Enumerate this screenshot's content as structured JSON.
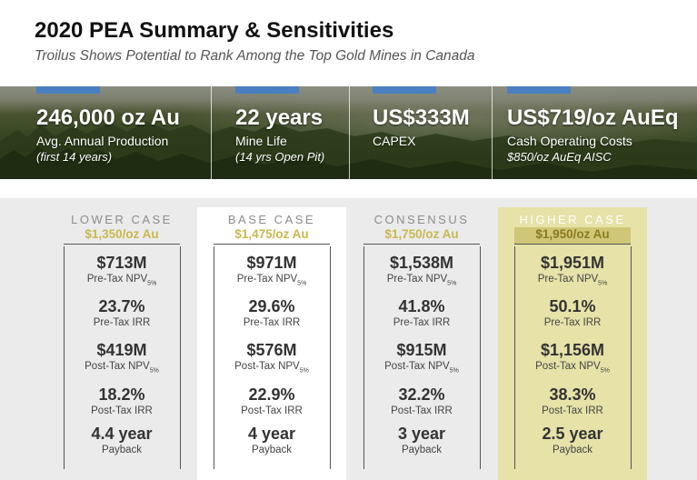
{
  "header": {
    "title": "2020 PEA Summary & Sensitivities",
    "subtitle": "Troilus Shows Potential to Rank Among the Top Gold Mines in Canada"
  },
  "banner_stats": [
    {
      "value": "246,000 oz Au",
      "line1": "Avg. Annual Production",
      "line2": "(first 14 years)"
    },
    {
      "value": "22 years",
      "line1": "Mine Life",
      "line2": "(14 yrs Open Pit)"
    },
    {
      "value": "US$333M",
      "line1": "CAPEX",
      "line2": ""
    },
    {
      "value": "US$719/oz AuEq",
      "line1": "Cash Operating Costs",
      "line2": "$850/oz AuEq AISC"
    }
  ],
  "colors": {
    "accent_bar": "#4a7fc1",
    "gold_text": "#c9b84e",
    "higher_case_bg": "#e6e2a8",
    "panel_bg": "#ebebeb"
  },
  "cases": [
    {
      "name": "LOWER CASE",
      "price": "$1,350/oz Au",
      "metrics": [
        {
          "value": "$713M",
          "label": "Pre-Tax NPV",
          "sub": "5%"
        },
        {
          "value": "23.7%",
          "label": "Pre-Tax IRR",
          "sub": ""
        },
        {
          "value": "$419M",
          "label": "Post-Tax NPV",
          "sub": "5%"
        },
        {
          "value": "18.2%",
          "label": "Post-Tax IRR",
          "sub": ""
        },
        {
          "value": "4.4 year",
          "label": "Payback",
          "sub": ""
        }
      ]
    },
    {
      "name": "BASE CASE",
      "price": "$1,475/oz Au",
      "metrics": [
        {
          "value": "$971M",
          "label": "Pre-Tax NPV",
          "sub": "5%"
        },
        {
          "value": "29.6%",
          "label": "Pre-Tax IRR",
          "sub": ""
        },
        {
          "value": "$576M",
          "label": "Post-Tax NPV",
          "sub": "5%"
        },
        {
          "value": "22.9%",
          "label": "Post-Tax IRR",
          "sub": ""
        },
        {
          "value": "4 year",
          "label": "Payback",
          "sub": ""
        }
      ]
    },
    {
      "name": "CONSENSUS",
      "price": "$1,750/oz Au",
      "metrics": [
        {
          "value": "$1,538M",
          "label": "Pre-Tax NPV",
          "sub": "5%"
        },
        {
          "value": "41.8%",
          "label": "Pre-Tax IRR",
          "sub": ""
        },
        {
          "value": "$915M",
          "label": "Post-Tax NPV",
          "sub": "5%"
        },
        {
          "value": "32.2%",
          "label": "Post-Tax IRR",
          "sub": ""
        },
        {
          "value": "3 year",
          "label": "Payback",
          "sub": ""
        }
      ]
    },
    {
      "name": "HIGHER CASE",
      "price": "$1,950/oz Au",
      "metrics": [
        {
          "value": "$1,951M",
          "label": "Pre-Tax NPV",
          "sub": "5%"
        },
        {
          "value": "50.1%",
          "label": "Pre-Tax IRR",
          "sub": ""
        },
        {
          "value": "$1,156M",
          "label": "Post-Tax NPV",
          "sub": "5%"
        },
        {
          "value": "38.3%",
          "label": "Post-Tax IRR",
          "sub": ""
        },
        {
          "value": "2.5 year",
          "label": "Payback",
          "sub": ""
        }
      ]
    }
  ]
}
